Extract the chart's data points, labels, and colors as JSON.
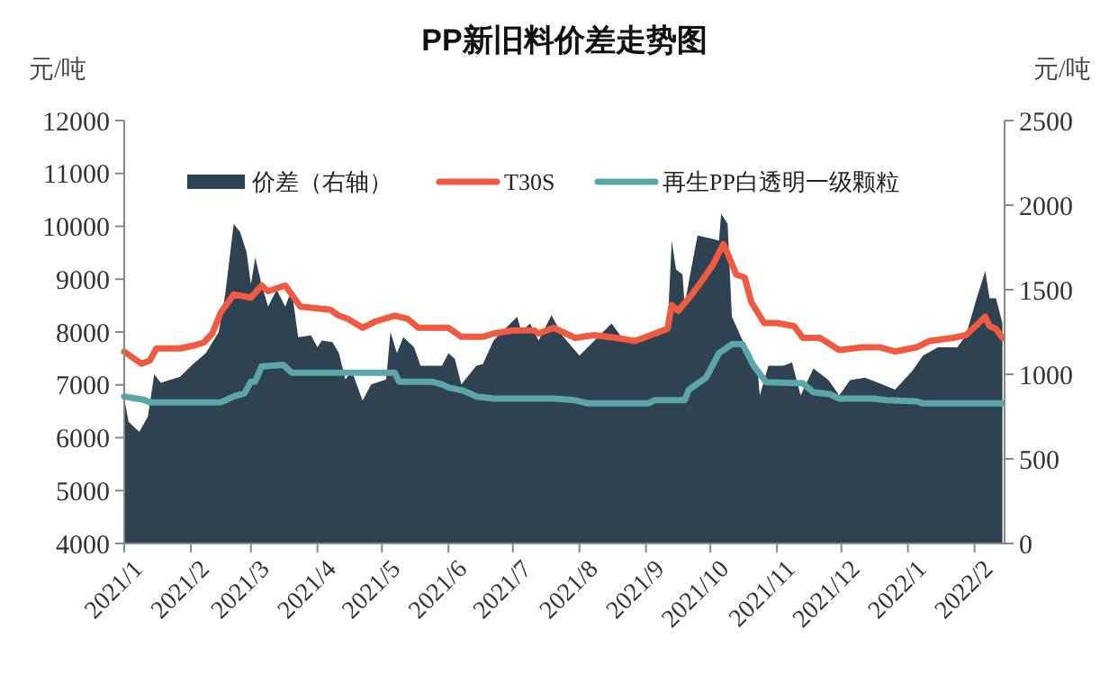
{
  "chart_data": {
    "type": "line",
    "title": "PP新旧料价差走势图",
    "ylabel": "元/吨",
    "y2label": "元/吨",
    "legend": "top",
    "grid": false,
    "xlim": [
      "2021-01-01",
      "2022-02-15"
    ],
    "xticks": [
      {
        "value": "2021-01-01",
        "label": "2021/1"
      },
      {
        "value": "2021-02-01",
        "label": "2021/2"
      },
      {
        "value": "2021-03-01",
        "label": "2021/3"
      },
      {
        "value": "2021-04-01",
        "label": "2021/4"
      },
      {
        "value": "2021-05-01",
        "label": "2021/5"
      },
      {
        "value": "2021-06-01",
        "label": "2021/6"
      },
      {
        "value": "2021-07-01",
        "label": "2021/7"
      },
      {
        "value": "2021-08-01",
        "label": "2021/8"
      },
      {
        "value": "2021-09-01",
        "label": "2021/9"
      },
      {
        "value": "2021-10-01",
        "label": "2021/10"
      },
      {
        "value": "2021-11-01",
        "label": "2021/11"
      },
      {
        "value": "2021-12-01",
        "label": "2021/12"
      },
      {
        "value": "2022-01-01",
        "label": "2022/1"
      },
      {
        "value": "2022-02-01",
        "label": "2022/2"
      }
    ],
    "ylim": [
      4000,
      12000
    ],
    "yticks": [
      4000,
      5000,
      6000,
      7000,
      8000,
      9000,
      10000,
      11000,
      12000
    ],
    "y2lim": [
      0,
      2500
    ],
    "y2ticks": [
      0,
      500,
      1000,
      1500,
      2000,
      2500
    ],
    "series": [
      {
        "name": "价差（右轴）",
        "type": "area",
        "axis": "y2",
        "color": "#2e4252",
        "x": [
          "2021-01-01",
          "2021-01-03",
          "2021-01-08",
          "2021-01-12",
          "2021-01-15",
          "2021-01-18",
          "2021-01-27",
          "2021-02-02",
          "2021-02-08",
          "2021-02-14",
          "2021-02-17",
          "2021-02-21",
          "2021-02-24",
          "2021-02-27",
          "2021-03-01",
          "2021-03-03",
          "2021-03-06",
          "2021-03-09",
          "2021-03-13",
          "2021-03-17",
          "2021-03-20",
          "2021-03-23",
          "2021-03-29",
          "2021-04-01",
          "2021-04-03",
          "2021-04-08",
          "2021-04-11",
          "2021-04-14",
          "2021-04-17",
          "2021-04-22",
          "2021-04-26",
          "2021-05-03",
          "2021-05-05",
          "2021-05-08",
          "2021-05-11",
          "2021-05-16",
          "2021-05-19",
          "2021-05-29",
          "2021-06-01",
          "2021-06-04",
          "2021-06-07",
          "2021-06-14",
          "2021-06-17",
          "2021-06-22",
          "2021-07-03",
          "2021-07-05",
          "2021-07-09",
          "2021-07-13",
          "2021-07-19",
          "2021-07-24",
          "2021-08-01",
          "2021-08-08",
          "2021-08-16",
          "2021-08-20",
          "2021-08-28",
          "2021-09-07",
          "2021-09-11",
          "2021-09-13",
          "2021-09-15",
          "2021-09-18",
          "2021-09-19",
          "2021-09-22",
          "2021-09-25",
          "2021-10-02",
          "2021-10-05",
          "2021-10-06",
          "2021-10-09",
          "2021-10-11",
          "2021-10-16",
          "2021-10-19",
          "2021-10-23",
          "2021-10-24",
          "2021-10-28",
          "2021-11-04",
          "2021-11-08",
          "2021-11-12",
          "2021-11-18",
          "2021-11-25",
          "2021-11-30",
          "2021-12-05",
          "2021-12-12",
          "2021-12-19",
          "2021-12-26",
          "2022-01-03",
          "2022-01-08",
          "2022-01-15",
          "2022-01-24",
          "2022-01-28",
          "2022-02-02",
          "2022-02-06",
          "2022-02-08",
          "2022-02-11",
          "2022-02-14"
        ],
        "values": [
          860,
          720,
          660,
          750,
          1000,
          950,
          985,
          1060,
          1125,
          1250,
          1470,
          1890,
          1840,
          1720,
          1530,
          1690,
          1530,
          1400,
          1500,
          1400,
          1500,
          1220,
          1230,
          1160,
          1200,
          1190,
          1125,
          970,
          1020,
          845,
          940,
          970,
          1250,
          1125,
          1220,
          1160,
          1050,
          1050,
          1125,
          1090,
          940,
          1050,
          1060,
          1200,
          1340,
          1250,
          1300,
          1200,
          1350,
          1230,
          1110,
          1200,
          1300,
          1230,
          1200,
          1230,
          1270,
          1790,
          1620,
          1590,
          1410,
          1620,
          1820,
          1800,
          1790,
          1950,
          1890,
          1340,
          1200,
          1070,
          1020,
          875,
          1050,
          1050,
          1070,
          875,
          1035,
          965,
          875,
          965,
          980,
          945,
          910,
          1020,
          1110,
          1160,
          1160,
          1230,
          1450,
          1610,
          1450,
          1450,
          1300
        ]
      },
      {
        "name": "T30S",
        "color": "#ef5a40",
        "x": [
          "2021-01-01",
          "2021-01-09",
          "2021-01-13",
          "2021-01-16",
          "2021-01-27",
          "2021-02-02",
          "2021-02-07",
          "2021-02-11",
          "2021-02-15",
          "2021-02-21",
          "2021-03-01",
          "2021-03-06",
          "2021-03-09",
          "2021-03-17",
          "2021-03-20",
          "2021-03-24",
          "2021-04-07",
          "2021-04-11",
          "2021-04-15",
          "2021-04-22",
          "2021-04-28",
          "2021-05-07",
          "2021-05-13",
          "2021-05-18",
          "2021-06-01",
          "2021-06-07",
          "2021-06-17",
          "2021-06-22",
          "2021-07-01",
          "2021-07-11",
          "2021-07-13",
          "2021-07-20",
          "2021-07-30",
          "2021-08-08",
          "2021-08-18",
          "2021-08-27",
          "2021-09-07",
          "2021-09-11",
          "2021-09-13",
          "2021-09-16",
          "2021-09-22",
          "2021-09-26",
          "2021-10-02",
          "2021-10-07",
          "2021-10-09",
          "2021-10-13",
          "2021-10-17",
          "2021-10-20",
          "2021-10-26",
          "2021-11-01",
          "2021-11-09",
          "2021-11-13",
          "2021-11-21",
          "2021-11-30",
          "2021-12-11",
          "2021-12-19",
          "2021-12-26",
          "2022-01-05",
          "2022-01-11",
          "2022-01-22",
          "2022-01-28",
          "2022-02-03",
          "2022-02-06",
          "2022-02-08",
          "2022-02-11",
          "2022-02-14"
        ],
        "values": [
          7630,
          7400,
          7460,
          7690,
          7690,
          7740,
          7800,
          7970,
          8370,
          8710,
          8650,
          8880,
          8770,
          8880,
          8710,
          8480,
          8420,
          8310,
          8250,
          8080,
          8200,
          8310,
          8250,
          8080,
          8080,
          7910,
          7910,
          7970,
          8030,
          8030,
          7970,
          8080,
          7890,
          7940,
          7890,
          7830,
          8000,
          8060,
          8510,
          8400,
          8690,
          8910,
          9260,
          9660,
          9490,
          9090,
          9030,
          8570,
          8170,
          8170,
          8110,
          7890,
          7890,
          7660,
          7710,
          7710,
          7630,
          7710,
          7830,
          7890,
          7940,
          8170,
          8290,
          8110,
          8060,
          7890
        ]
      },
      {
        "name": "再生PP白透明一级颗粒",
        "color": "#5ba6ab",
        "x": [
          "2021-01-01",
          "2021-01-10",
          "2021-01-13",
          "2021-02-15",
          "2021-02-21",
          "2021-02-26",
          "2021-03-01",
          "2021-03-03",
          "2021-03-06",
          "2021-03-16",
          "2021-03-20",
          "2021-05-07",
          "2021-05-09",
          "2021-05-24",
          "2021-05-29",
          "2021-06-01",
          "2021-06-08",
          "2021-06-14",
          "2021-06-22",
          "2021-07-20",
          "2021-07-30",
          "2021-08-05",
          "2021-09-02",
          "2021-09-05",
          "2021-09-19",
          "2021-09-21",
          "2021-09-29",
          "2021-10-05",
          "2021-10-11",
          "2021-10-16",
          "2021-10-21",
          "2021-10-27",
          "2021-11-13",
          "2021-11-18",
          "2021-11-26",
          "2021-11-30",
          "2021-12-16",
          "2021-12-22",
          "2022-01-05",
          "2022-01-08",
          "2022-02-14"
        ],
        "values": [
          6780,
          6720,
          6670,
          6670,
          6780,
          6840,
          7060,
          7060,
          7350,
          7380,
          7230,
          7230,
          7060,
          7060,
          7010,
          6950,
          6890,
          6780,
          6740,
          6740,
          6710,
          6650,
          6650,
          6710,
          6710,
          6910,
          7140,
          7600,
          7770,
          7770,
          7370,
          7050,
          7030,
          6860,
          6820,
          6740,
          6740,
          6710,
          6690,
          6650,
          6650
        ]
      }
    ]
  }
}
